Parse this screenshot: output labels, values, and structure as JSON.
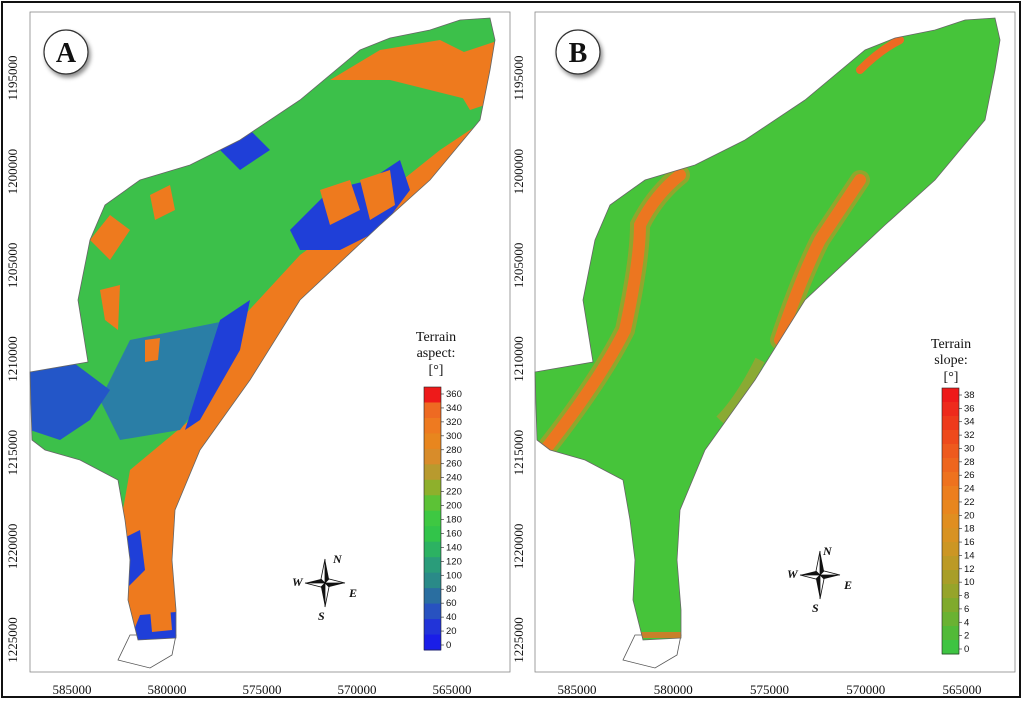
{
  "panels": [
    {
      "id": "A",
      "label": "A",
      "legend": {
        "title_line1": "Terrain",
        "title_line2": "aspect:",
        "unit": "[°]",
        "ticks": [
          "360",
          "340",
          "320",
          "300",
          "280",
          "260",
          "240",
          "220",
          "200",
          "180",
          "160",
          "140",
          "120",
          "100",
          "80",
          "60",
          "40",
          "20",
          "0"
        ],
        "colors": [
          "#ee1a1a",
          "#ee6a22",
          "#ee7a20",
          "#e8861e",
          "#d88c2a",
          "#b89a2e",
          "#8eb02c",
          "#5cc236",
          "#3ec842",
          "#32c44a",
          "#2cb262",
          "#2a9c7a",
          "#2a8a88",
          "#2a6ea0",
          "#2852c0",
          "#2234d8",
          "#1a1ee8"
        ]
      },
      "y_ticks": [
        "1195000",
        "1200000",
        "1205000",
        "1210000",
        "1215000",
        "1220000",
        "1225000"
      ],
      "x_ticks": [
        "585000",
        "580000",
        "575000",
        "570000",
        "565000"
      ],
      "compass": {
        "n": "N",
        "e": "E",
        "s": "S",
        "w": "W"
      }
    },
    {
      "id": "B",
      "label": "B",
      "legend": {
        "title_line1": "Terrain",
        "title_line2": "slope:",
        "unit": "[°]",
        "ticks": [
          "38",
          "36",
          "34",
          "32",
          "30",
          "28",
          "26",
          "24",
          "22",
          "20",
          "18",
          "16",
          "14",
          "12",
          "10",
          "8",
          "6",
          "4",
          "2",
          "0"
        ],
        "colors": [
          "#ee1a1a",
          "#ee2a1c",
          "#ee3a1c",
          "#ee4a1c",
          "#ee5a1e",
          "#ee661e",
          "#ee721e",
          "#ec7e1e",
          "#e8861e",
          "#e08e20",
          "#d89222",
          "#cc9624",
          "#bc9a26",
          "#a89e28",
          "#96a42a",
          "#80aa2c",
          "#6ab232",
          "#52ba38",
          "#3ec442"
        ]
      },
      "y_ticks": [
        "1195000",
        "1200000",
        "1205000",
        "1210000",
        "1215000",
        "1220000",
        "1225000"
      ],
      "x_ticks": [
        "585000",
        "580000",
        "575000",
        "570000",
        "565000"
      ],
      "compass": {
        "n": "N",
        "e": "E",
        "s": "S",
        "w": "W"
      }
    }
  ],
  "colors": {
    "aspect_green": "#3cc04a",
    "aspect_orange": "#ee7a1e",
    "aspect_blue": "#1f3fd8",
    "slope_green": "#46c43a",
    "slope_red": "#ee4a1c"
  }
}
